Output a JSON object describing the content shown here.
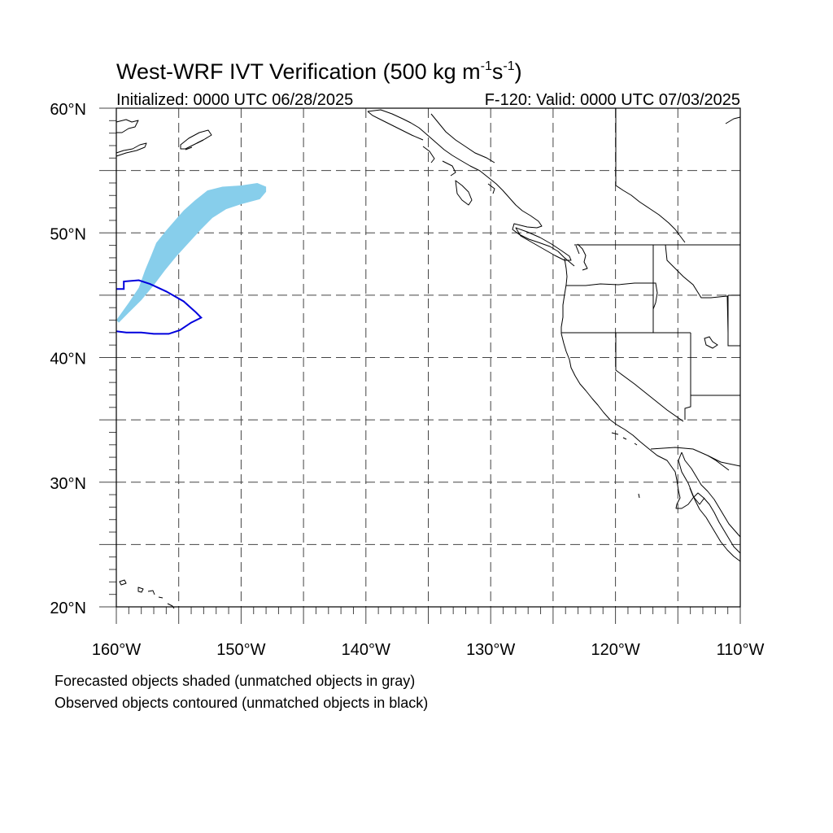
{
  "title": {
    "main": "West-WRF IVT Verification (500 kg m",
    "sup1": "-1",
    "mid": "s",
    "sup2": "-1",
    "end": ")"
  },
  "subtitle_left": "Initialized: 0000 UTC 06/28/2025",
  "subtitle_right": "F-120: Valid: 0000 UTC 07/03/2025",
  "map": {
    "lon_range": [
      -160,
      -110
    ],
    "lat_range": [
      20,
      60
    ],
    "grid_lon_step": 5,
    "grid_lat_step": 5,
    "lat_labels": [
      {
        "lat": 60,
        "text": "60°N"
      },
      {
        "lat": 50,
        "text": "50°N"
      },
      {
        "lat": 40,
        "text": "40°N"
      },
      {
        "lat": 30,
        "text": "30°N"
      },
      {
        "lat": 20,
        "text": "20°N"
      }
    ],
    "lon_labels": [
      {
        "lon": -160,
        "text": "160°W"
      },
      {
        "lon": -150,
        "text": "150°W"
      },
      {
        "lon": -140,
        "text": "140°W"
      },
      {
        "lon": -130,
        "text": "130°W"
      },
      {
        "lon": -120,
        "text": "120°W"
      },
      {
        "lon": -110,
        "text": "110°W"
      }
    ],
    "forecast_color": "#87ceeb",
    "observed_color": "#0000dd",
    "forecast_object": [
      [
        -160,
        43.0
      ],
      [
        -159.0,
        44.4
      ],
      [
        -158.2,
        45.6
      ],
      [
        -157.7,
        47.0
      ],
      [
        -157.2,
        48.2
      ],
      [
        -156.8,
        49.2
      ],
      [
        -156.0,
        50.2
      ],
      [
        -155.3,
        51.0
      ],
      [
        -154.6,
        51.8
      ],
      [
        -153.7,
        52.6
      ],
      [
        -152.7,
        53.4
      ],
      [
        -151.5,
        53.7
      ],
      [
        -150.0,
        53.8
      ],
      [
        -148.7,
        54.0
      ],
      [
        -148.0,
        53.7
      ],
      [
        -148.0,
        53.3
      ],
      [
        -148.5,
        52.7
      ],
      [
        -150.0,
        52.3
      ],
      [
        -151.2,
        51.9
      ],
      [
        -152.3,
        51.2
      ],
      [
        -153.2,
        50.3
      ],
      [
        -154.2,
        49.2
      ],
      [
        -155.2,
        48.1
      ],
      [
        -156.1,
        47.0
      ],
      [
        -157.0,
        45.8
      ],
      [
        -158.0,
        44.6
      ],
      [
        -159.0,
        43.6
      ],
      [
        -159.8,
        42.8
      ]
    ],
    "observed_object": [
      [
        -160,
        45.5
      ],
      [
        -159.4,
        45.5
      ],
      [
        -159.4,
        46.1
      ],
      [
        -158.2,
        46.2
      ],
      [
        -157.3,
        45.9
      ],
      [
        -156.0,
        45.3
      ],
      [
        -154.6,
        44.5
      ],
      [
        -153.6,
        43.6
      ],
      [
        -153.2,
        43.2
      ],
      [
        -154.0,
        42.8
      ],
      [
        -154.9,
        42.2
      ],
      [
        -155.8,
        41.9
      ],
      [
        -157.0,
        41.9
      ],
      [
        -158.0,
        42.0
      ],
      [
        -159.2,
        42.0
      ],
      [
        -160,
        42.1
      ]
    ]
  },
  "caption_line1": "Forecasted objects shaded (unmatched objects in gray)",
  "caption_line2": "Observed objects contoured (unmatched objects in black)"
}
